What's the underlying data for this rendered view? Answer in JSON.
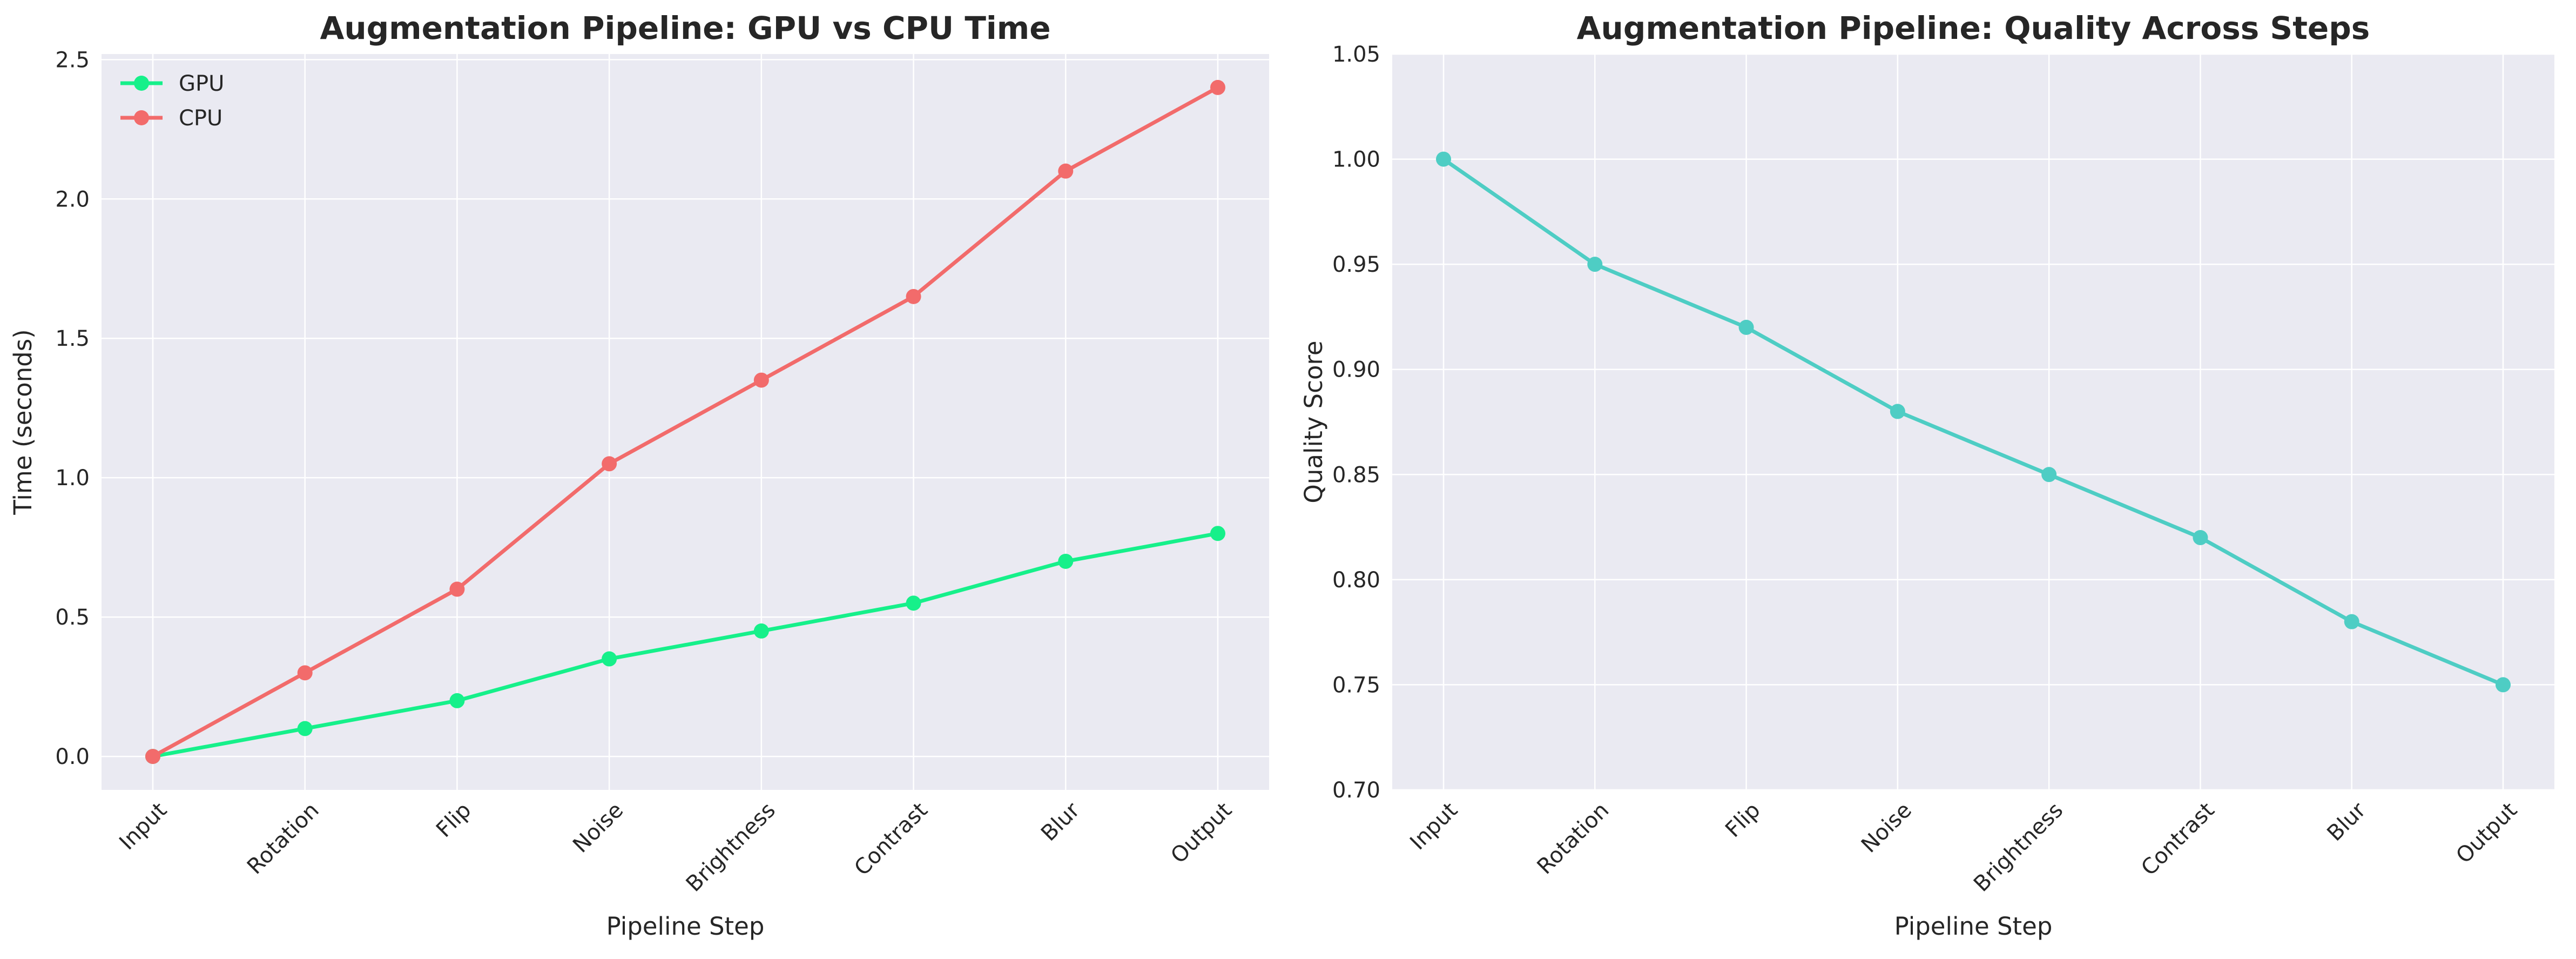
{
  "colors": {
    "gpu": "#16f08a",
    "cpu": "#f26b6b",
    "quality": "#4ecdc4",
    "plot_bg": "#eaeaf2",
    "grid": "#ffffff"
  },
  "chart_data": [
    {
      "type": "line",
      "title": "Augmentation Pipeline: GPU vs CPU Time",
      "xlabel": "Pipeline Step",
      "ylabel": "Time (seconds)",
      "categories": [
        "Input",
        "Rotation",
        "Flip",
        "Noise",
        "Brightness",
        "Contrast",
        "Blur",
        "Output"
      ],
      "series": [
        {
          "name": "GPU",
          "color": "#16f08a",
          "values": [
            0.0,
            0.1,
            0.2,
            0.35,
            0.45,
            0.55,
            0.7,
            0.8
          ]
        },
        {
          "name": "CPU",
          "color": "#f26b6b",
          "values": [
            0.0,
            0.3,
            0.6,
            1.05,
            1.35,
            1.65,
            2.1,
            2.4
          ]
        }
      ],
      "ylim": [
        -0.12,
        2.52
      ],
      "yticks": [
        "0.0",
        "0.5",
        "1.0",
        "1.5",
        "2.0",
        "2.5"
      ],
      "grid": true,
      "legend": "top-left"
    },
    {
      "type": "line",
      "title": "Augmentation Pipeline: Quality Across Steps",
      "xlabel": "Pipeline Step",
      "ylabel": "Quality Score",
      "categories": [
        "Input",
        "Rotation",
        "Flip",
        "Noise",
        "Brightness",
        "Contrast",
        "Blur",
        "Output"
      ],
      "series": [
        {
          "color": "#4ecdc4",
          "values": [
            1.0,
            0.95,
            0.92,
            0.88,
            0.85,
            0.82,
            0.78,
            0.75
          ]
        }
      ],
      "ylim": [
        0.7,
        1.05
      ],
      "yticks": [
        "0.70",
        "0.75",
        "0.80",
        "0.85",
        "0.90",
        "0.95",
        "1.00",
        "1.05"
      ],
      "grid": true,
      "legend": "none"
    }
  ]
}
